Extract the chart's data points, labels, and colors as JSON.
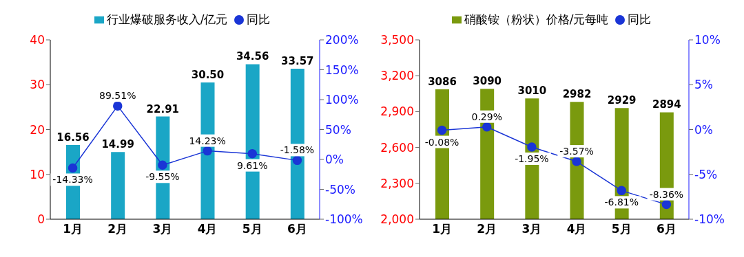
{
  "chart_data": [
    {
      "type": "bar",
      "categories": [
        "1月",
        "2月",
        "3月",
        "4月",
        "5月",
        "6月"
      ],
      "legend": "top",
      "marker": "circle",
      "line_style": "solid",
      "grid": false,
      "ylim": [
        0,
        40
      ],
      "yticks": [
        0,
        10,
        20,
        30,
        40
      ],
      "y2lim": [
        -100,
        200
      ],
      "y2ticks": [
        {
          "value": -100,
          "label": "-100%"
        },
        {
          "value": -50,
          "label": "-50%"
        },
        {
          "value": 0,
          "label": "0%"
        },
        {
          "value": 50,
          "label": "50%"
        },
        {
          "value": 100,
          "label": "100%"
        },
        {
          "value": 150,
          "label": "150%"
        },
        {
          "value": 200,
          "label": "200%"
        }
      ],
      "series": [
        {
          "name": "行业爆破服务收入/亿元",
          "color": "#1aa6c6",
          "values": [
            16.56,
            14.99,
            22.91,
            30.5,
            34.56,
            33.57
          ],
          "value_labels": [
            "16.56",
            "14.99",
            "22.91",
            "30.50",
            "34.56",
            "33.57"
          ]
        },
        {
          "name": "同比",
          "type": "line",
          "axis": "y2",
          "color": "#1a35d6",
          "values": [
            -14.33,
            89.51,
            -9.55,
            14.23,
            9.61,
            -1.58
          ],
          "value_labels": [
            "-14.33%",
            "89.51%",
            "-9.55%",
            "14.23%",
            "9.61%",
            "-1.58%"
          ]
        }
      ]
    },
    {
      "type": "bar",
      "categories": [
        "1月",
        "2月",
        "3月",
        "4月",
        "5月",
        "6月"
      ],
      "legend": "top",
      "marker": "circle",
      "line_style": "solid",
      "grid": false,
      "ylim": [
        2000,
        3500
      ],
      "yticks": [
        {
          "value": 2000,
          "label": "2,000"
        },
        {
          "value": 2300,
          "label": "2,300"
        },
        {
          "value": 2600,
          "label": "2,600"
        },
        {
          "value": 2900,
          "label": "2,900"
        },
        {
          "value": 3200,
          "label": "3,200"
        },
        {
          "value": 3500,
          "label": "3,500"
        }
      ],
      "y2lim": [
        -10,
        10
      ],
      "y2ticks": [
        {
          "value": -10,
          "label": "-10%"
        },
        {
          "value": -5,
          "label": "-5%"
        },
        {
          "value": 0,
          "label": "0%"
        },
        {
          "value": 5,
          "label": "5%"
        },
        {
          "value": 10,
          "label": "10%"
        }
      ],
      "series": [
        {
          "name": "硝酸铵（粉状）价格/元每吨",
          "color": "#7a9a0e",
          "values": [
            3086,
            3090,
            3010,
            2982,
            2929,
            2894
          ],
          "value_labels": [
            "3086",
            "3090",
            "3010",
            "2982",
            "2929",
            "2894"
          ]
        },
        {
          "name": "同比",
          "type": "line",
          "axis": "y2",
          "color": "#1a35d6",
          "values": [
            -0.08,
            0.29,
            -1.95,
            -3.57,
            -6.81,
            -8.36
          ],
          "value_labels": [
            "-0.08%",
            "0.29%",
            "-1.95%",
            "-3.57%",
            "-6.81%",
            "-8.36%"
          ]
        }
      ]
    }
  ]
}
